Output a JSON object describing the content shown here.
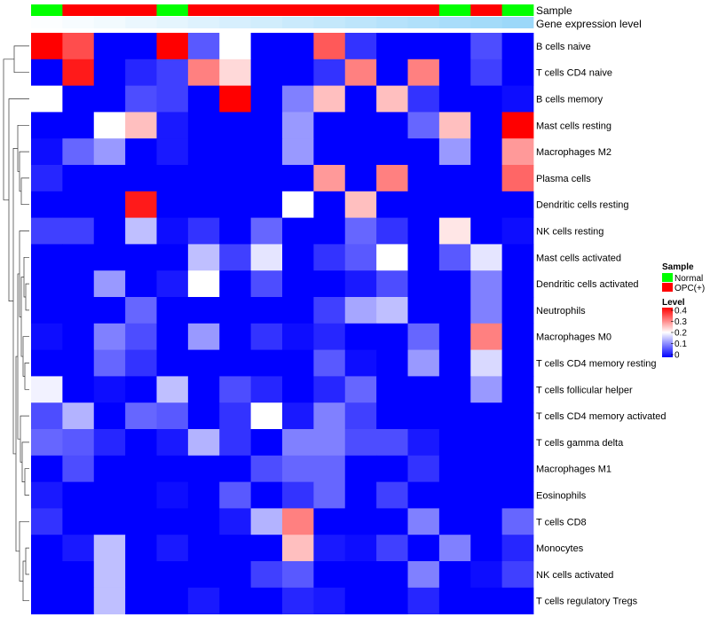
{
  "chart_data": {
    "type": "heatmap",
    "title": "",
    "annotations": {
      "sample_label": "Sample",
      "gene_label": "Gene expression level",
      "sample_row": [
        "Normal",
        "OPC(+)",
        "OPC(+)",
        "OPC(+)",
        "Normal",
        "OPC(+)",
        "OPC(+)",
        "OPC(+)",
        "OPC(+)",
        "OPC(+)",
        "OPC(+)",
        "OPC(+)",
        "OPC(+)",
        "Normal",
        "OPC(+)",
        "Normal"
      ],
      "gene_level_row": [
        0.02,
        0.05,
        0.08,
        0.12,
        0.16,
        0.2,
        0.24,
        0.28,
        0.32,
        0.36,
        0.4,
        0.44,
        0.48,
        0.52,
        0.56,
        0.6
      ]
    },
    "rows": [
      "B cells naive",
      "T cells CD4 naive",
      "B cells memory",
      "Mast cells resting",
      "Macrophages M2",
      "Plasma cells",
      "Dendritic cells resting",
      "NK cells resting",
      "Mast cells activated",
      "Dendritic cells activated",
      "Neutrophils",
      "Macrophages M0",
      "T cells CD4 memory resting",
      "T cells follicular helper",
      "T cells CD4 memory activated",
      "T cells gamma delta",
      "Macrophages M1",
      "Eosinophils",
      "T cells CD8",
      "Monocytes",
      "NK cells activated",
      "T cells regulatory  Tregs"
    ],
    "values": [
      [
        0.4,
        0.34,
        0,
        0,
        0.4,
        0.07,
        0.2,
        0,
        0,
        0.33,
        0.04,
        0,
        0,
        0,
        0.06,
        0
      ],
      [
        0,
        0.38,
        0,
        0.03,
        0.05,
        0.3,
        0.23,
        0,
        0,
        0.04,
        0.3,
        0,
        0.3,
        0,
        0.05,
        0
      ],
      [
        0.2,
        0,
        0,
        0.06,
        0.05,
        0,
        0.4,
        0,
        0.1,
        0.25,
        0,
        0.25,
        0.04,
        0,
        0,
        0.01
      ],
      [
        0,
        0,
        0.2,
        0.25,
        0.02,
        0,
        0,
        0,
        0.12,
        0,
        0,
        0,
        0.08,
        0.25,
        0,
        0.4
      ],
      [
        0.01,
        0.08,
        0.12,
        0,
        0.02,
        0,
        0,
        0,
        0.12,
        0,
        0,
        0,
        0,
        0.12,
        0,
        0.28
      ],
      [
        0.03,
        0,
        0,
        0,
        0,
        0,
        0,
        0,
        0,
        0.28,
        0,
        0.3,
        0,
        0,
        0,
        0.32
      ],
      [
        0,
        0,
        0,
        0.38,
        0,
        0,
        0,
        0,
        0.2,
        0,
        0.25,
        0,
        0,
        0,
        0,
        0
      ],
      [
        0.05,
        0.05,
        0,
        0.15,
        0.01,
        0.04,
        0,
        0.08,
        0,
        0,
        0.08,
        0.04,
        0,
        0.22,
        0,
        0.01
      ],
      [
        0,
        0,
        0,
        0,
        0,
        0.15,
        0.05,
        0.18,
        0,
        0.04,
        0.07,
        0.2,
        0,
        0.07,
        0.18,
        0
      ],
      [
        0,
        0,
        0.12,
        0,
        0.02,
        0.2,
        0,
        0.06,
        0,
        0,
        0.02,
        0.06,
        0,
        0,
        0.1,
        0
      ],
      [
        0,
        0,
        0,
        0.08,
        0,
        0,
        0,
        0,
        0,
        0.05,
        0.13,
        0.15,
        0,
        0,
        0.1,
        0
      ],
      [
        0.01,
        0,
        0.1,
        0.06,
        0,
        0.12,
        0,
        0.04,
        0.01,
        0.03,
        0,
        0,
        0.08,
        0,
        0.3,
        0
      ],
      [
        0,
        0,
        0.08,
        0.04,
        0,
        0,
        0,
        0,
        0,
        0.07,
        0.01,
        0,
        0.12,
        0,
        0.17,
        0
      ],
      [
        0.19,
        0,
        0.01,
        0,
        0.15,
        0,
        0.06,
        0.03,
        0,
        0.03,
        0.08,
        0,
        0,
        0,
        0.12,
        0
      ],
      [
        0.06,
        0.14,
        0,
        0.08,
        0.07,
        0,
        0.04,
        0.2,
        0.02,
        0.1,
        0.05,
        0,
        0,
        0,
        0,
        0
      ],
      [
        0.08,
        0.07,
        0.03,
        0,
        0.02,
        0.14,
        0.04,
        0,
        0.1,
        0.1,
        0.06,
        0.06,
        0.02,
        0,
        0,
        0
      ],
      [
        0,
        0.06,
        0,
        0,
        0,
        0,
        0,
        0.06,
        0.08,
        0.08,
        0,
        0,
        0.04,
        0,
        0,
        0
      ],
      [
        0.02,
        0,
        0,
        0,
        0.01,
        0,
        0.07,
        0,
        0.04,
        0.08,
        0,
        0.05,
        0,
        0,
        0,
        0
      ],
      [
        0.04,
        0,
        0,
        0,
        0,
        0,
        0.02,
        0.14,
        0.3,
        0,
        0,
        0,
        0.1,
        0,
        0,
        0.08
      ],
      [
        0,
        0.02,
        0.15,
        0,
        0.02,
        0,
        0,
        0,
        0.25,
        0.02,
        0.01,
        0.05,
        0,
        0.1,
        0,
        0.03
      ],
      [
        0,
        0,
        0.15,
        0,
        0,
        0,
        0,
        0.05,
        0.07,
        0,
        0,
        0,
        0.1,
        0,
        0.01,
        0.05
      ],
      [
        0,
        0,
        0.15,
        0,
        0,
        0.02,
        0,
        0,
        0.03,
        0.02,
        0,
        0,
        0.03,
        0,
        0,
        0
      ]
    ],
    "color_scale": {
      "min": 0,
      "max": 0.4,
      "low": "#0000ff",
      "mid": "#ffffff",
      "high": "#ff0000"
    },
    "legend": {
      "sample_title": "Sample",
      "sample_entries": [
        {
          "label": "Normal",
          "color": "#00ff00"
        },
        {
          "label": "OPC(+)",
          "color": "#ff0000"
        }
      ],
      "level_title": "Level",
      "level_ticks": [
        "0.4",
        "0.3",
        "0.2",
        "0.1",
        "0"
      ],
      "placement": "right"
    }
  }
}
